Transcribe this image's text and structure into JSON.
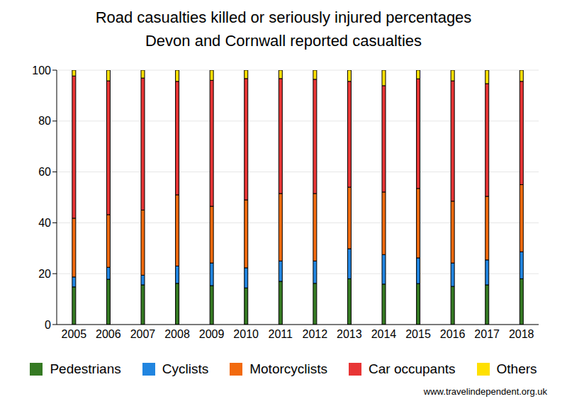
{
  "chart_data": {
    "type": "bar",
    "title": "Road casualties killed or seriously injured percentages",
    "subtitle": "Devon and Cornwall reported casualties",
    "categories": [
      "2005",
      "2006",
      "2007",
      "2008",
      "2009",
      "2010",
      "2011",
      "2012",
      "2013",
      "2014",
      "2015",
      "2016",
      "2017",
      "2018"
    ],
    "series": [
      {
        "name": "Pedestrians",
        "color": "#357a23",
        "values": [
          14.8,
          17.8,
          15.6,
          16.2,
          15.3,
          14.4,
          17,
          16.2,
          18,
          15.9,
          16.1,
          15,
          15.6,
          18
        ]
      },
      {
        "name": "Cyclists",
        "color": "#2185e0",
        "values": [
          3.9,
          4.7,
          3.8,
          6.8,
          8.9,
          7.9,
          8,
          8.8,
          11.8,
          11.6,
          10.1,
          9.2,
          9.8,
          10.6
        ]
      },
      {
        "name": "Motorcyclists",
        "color": "#f26a0e",
        "values": [
          23.1,
          20.7,
          25.6,
          28,
          22.3,
          26.7,
          26.5,
          26.5,
          24.2,
          24.6,
          27.3,
          24.3,
          25,
          26.4
        ]
      },
      {
        "name": "Car occupants",
        "color": "#e83535",
        "values": [
          55.9,
          52.6,
          51.9,
          44.6,
          49.5,
          47.7,
          45.2,
          44.9,
          41.6,
          41.8,
          43.1,
          47.3,
          44.3,
          40.6
        ]
      },
      {
        "name": "Others",
        "color": "#ffe000",
        "values": [
          2.3,
          4.2,
          3.1,
          4.4,
          4,
          3.3,
          3.3,
          3.6,
          4.4,
          6.1,
          3.4,
          4.2,
          5.3,
          4.4
        ]
      }
    ],
    "stacked": true,
    "ylim": [
      0,
      100
    ],
    "yticks": [
      0,
      20,
      40,
      60,
      80,
      100
    ],
    "grid": true,
    "legend": "bottom",
    "annotations": [
      "www.travelindependent.org.uk"
    ]
  }
}
